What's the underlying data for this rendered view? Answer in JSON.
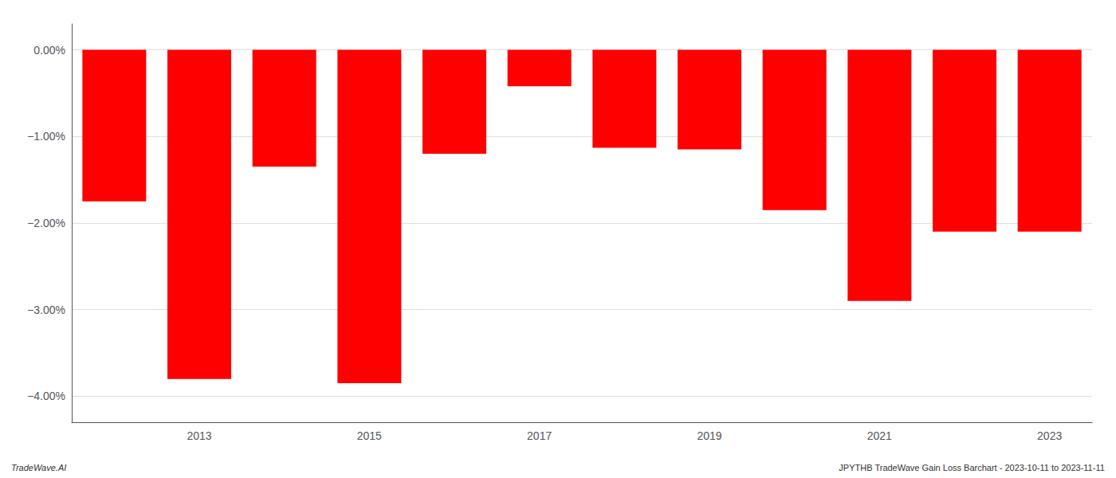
{
  "chart_data": {
    "type": "bar",
    "categories": [
      null,
      "2013",
      null,
      "2015",
      null,
      "2017",
      null,
      "2019",
      null,
      "2021",
      null,
      "2023"
    ],
    "values": [
      -1.75,
      -3.8,
      -1.35,
      -3.85,
      -1.2,
      -0.42,
      -1.13,
      -1.15,
      -1.85,
      -2.9,
      -2.1,
      -2.1
    ],
    "color": "#ff0000",
    "ylim": [
      -4.3,
      0.3
    ],
    "yticks": [
      {
        "value": 0.0,
        "label": "0.00%"
      },
      {
        "value": -1.0,
        "label": "−1.00%"
      },
      {
        "value": -2.0,
        "label": "−2.00%"
      },
      {
        "value": -3.0,
        "label": "−3.00%"
      },
      {
        "value": -4.0,
        "label": "−4.00%"
      }
    ],
    "grid": true,
    "annotations": [
      "TradeWave.AI",
      "JPYTHB TradeWave Gain Loss Barchart - 2023-10-11 to 2023-11-11"
    ]
  }
}
